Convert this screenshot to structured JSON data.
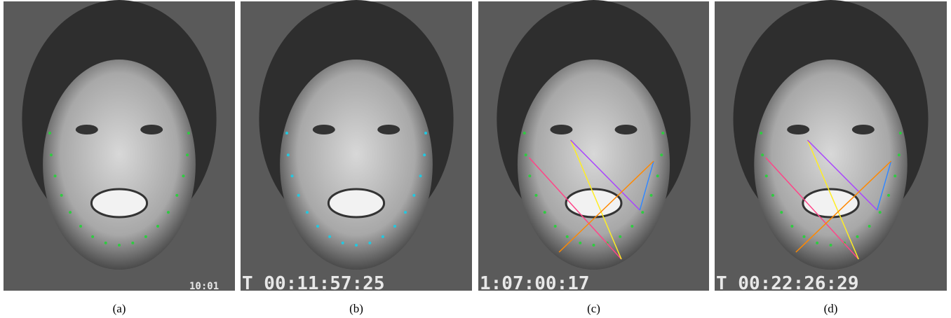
{
  "panels": [
    {
      "caption": "(a)",
      "timecode": "10:01"
    },
    {
      "caption": "(b)",
      "timecode": "T 00:11:57:25"
    },
    {
      "caption": "(c)",
      "timecode": "1:07:00:17"
    },
    {
      "caption": "(d)",
      "timecode": "T 00:22:26:29"
    }
  ]
}
